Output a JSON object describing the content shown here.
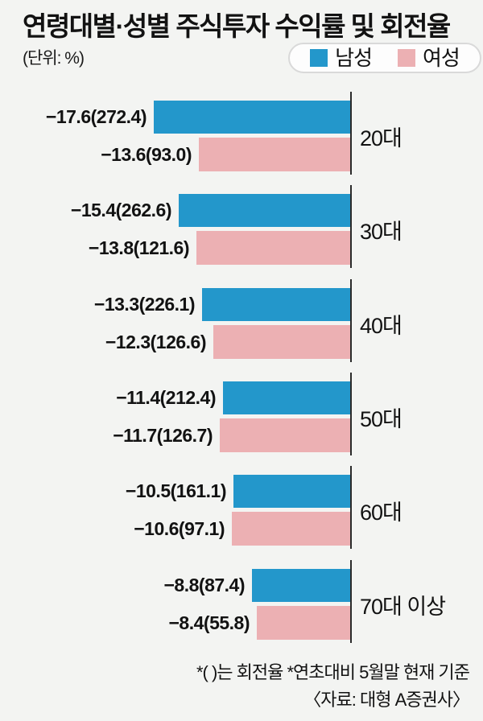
{
  "header": {
    "title": "연령대별·성별 주식투자 수익률 및 회전율",
    "unit_label": "(단위: %)",
    "legend": [
      {
        "label": "남성",
        "color": "#2397cb"
      },
      {
        "label": "여성",
        "color": "#ecb0b3"
      }
    ]
  },
  "chart_data": {
    "type": "bar",
    "orientation": "horizontal",
    "title": "연령대별·성별 주식투자 수익률 및 회전율",
    "unit": "%",
    "note": "괄호 안은 회전율",
    "categories": [
      "20대",
      "30대",
      "40대",
      "50대",
      "60대",
      "70대 이상"
    ],
    "series": [
      {
        "name": "남성",
        "color": "#2397cb",
        "returns": [
          -17.6,
          -15.4,
          -13.3,
          -11.4,
          -10.5,
          -8.8
        ],
        "turnover": [
          272.4,
          262.6,
          226.1,
          212.4,
          161.1,
          87.4
        ]
      },
      {
        "name": "여성",
        "color": "#ecb0b3",
        "returns": [
          -13.6,
          -13.8,
          -12.3,
          -11.7,
          -10.6,
          -8.4
        ],
        "turnover": [
          93.0,
          121.6,
          126.6,
          126.7,
          97.1,
          55.8
        ]
      }
    ],
    "groups": [
      {
        "category": "20대",
        "male_label": "−17.6(272.4)",
        "female_label": "−13.6(93.0)",
        "male_return": -17.6,
        "female_return": -13.6
      },
      {
        "category": "30대",
        "male_label": "−15.4(262.6)",
        "female_label": "−13.8(121.6)",
        "male_return": -15.4,
        "female_return": -13.8
      },
      {
        "category": "40대",
        "male_label": "−13.3(226.1)",
        "female_label": "−12.3(126.6)",
        "male_return": -13.3,
        "female_return": -12.3
      },
      {
        "category": "50대",
        "male_label": "−11.4(212.4)",
        "female_label": "−11.7(126.7)",
        "male_return": -11.4,
        "female_return": -11.7
      },
      {
        "category": "60대",
        "male_label": "−10.5(161.1)",
        "female_label": "−10.6(97.1)",
        "male_return": -10.5,
        "female_return": -10.6
      },
      {
        "category": "70대 이상",
        "male_label": "−8.8(87.4)",
        "female_label": "−8.4(55.8)",
        "male_return": -8.8,
        "female_return": -8.4
      }
    ]
  },
  "footnote": {
    "line1": "*( )는 회전율 *연초대비 5월말 현재 기준",
    "line2": "〈자료: 대형 A증권사〉"
  }
}
